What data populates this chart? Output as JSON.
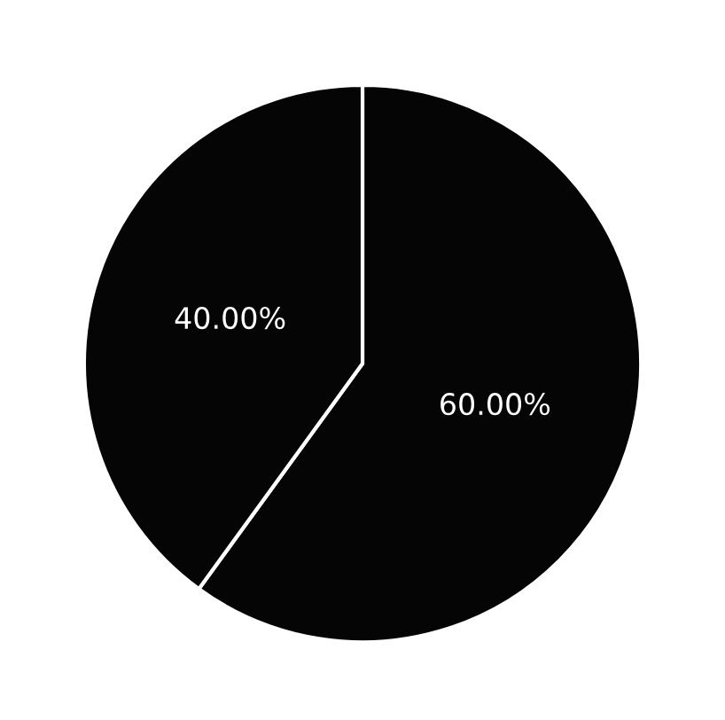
{
  "chart_data": {
    "type": "pie",
    "categories": [
      null,
      null
    ],
    "values": [
      60,
      40
    ],
    "colors": [
      "#050505",
      "#050505"
    ],
    "value_labels": [
      "60.00%",
      "40.00%"
    ]
  }
}
